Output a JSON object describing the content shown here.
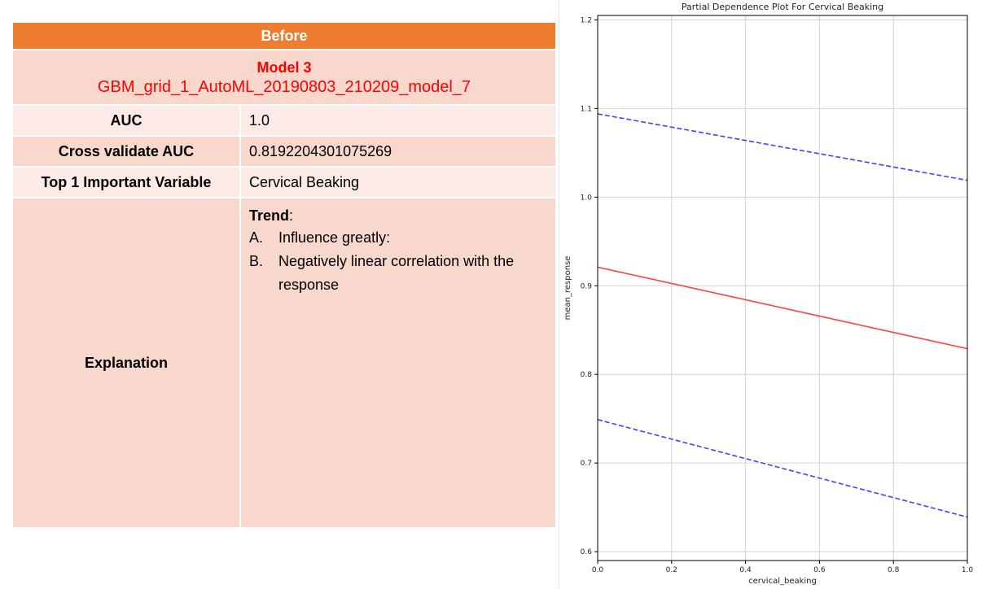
{
  "table": {
    "header": "Before",
    "model_title": "Model 3",
    "model_id": "GBM_grid_1_AutoML_20190803_210209_model_7",
    "rows": [
      {
        "label": "AUC",
        "value": "1.0"
      },
      {
        "label": "Cross validate AUC",
        "value": "0.8192204301075269"
      },
      {
        "label": "Top 1 Important Variable",
        "value": "Cervical Beaking"
      }
    ],
    "explanation": {
      "label": "Explanation",
      "trend_label": "Trend",
      "trend_colon": ":",
      "items": [
        {
          "letter": "A.",
          "text": "Influence greatly:"
        },
        {
          "letter": "B.",
          "text": "Negatively linear correlation with the response"
        }
      ]
    },
    "colors": {
      "header_bg": "#ed7d31",
      "row_dark": "#f8d8cd",
      "row_light": "#fbeae6",
      "model_text": "#ff0000"
    }
  },
  "chart_data": {
    "type": "line",
    "title": "Partial Dependence Plot For Cervical Beaking",
    "xlabel": "cervical_beaking",
    "ylabel": "mean_response",
    "xlim": [
      0,
      1
    ],
    "ylim": [
      0.59,
      1.205
    ],
    "xticks": [
      0.0,
      0.2,
      0.4,
      0.6,
      0.8,
      1.0
    ],
    "xtick_labels": [
      "0.0",
      "0.2",
      "0.4",
      "0.6",
      "0.8",
      "1.0"
    ],
    "yticks": [
      0.6,
      0.7,
      0.8,
      0.9,
      1.0,
      1.1,
      1.2
    ],
    "ytick_labels": [
      "0.6",
      "0.7",
      "0.8",
      "0.9",
      "1.0",
      "1.1",
      "1.2"
    ],
    "grid": true,
    "series": [
      {
        "x": [
          0,
          1
        ],
        "y": [
          0.921,
          0.829
        ],
        "color": "#ff4040",
        "dash": "solid"
      },
      {
        "x": [
          0,
          1
        ],
        "y": [
          1.094,
          1.019
        ],
        "color": "#4040ff",
        "dash": "dashed"
      },
      {
        "x": [
          0,
          1
        ],
        "y": [
          0.749,
          0.639
        ],
        "color": "#4040ff",
        "dash": "dashed"
      }
    ]
  }
}
